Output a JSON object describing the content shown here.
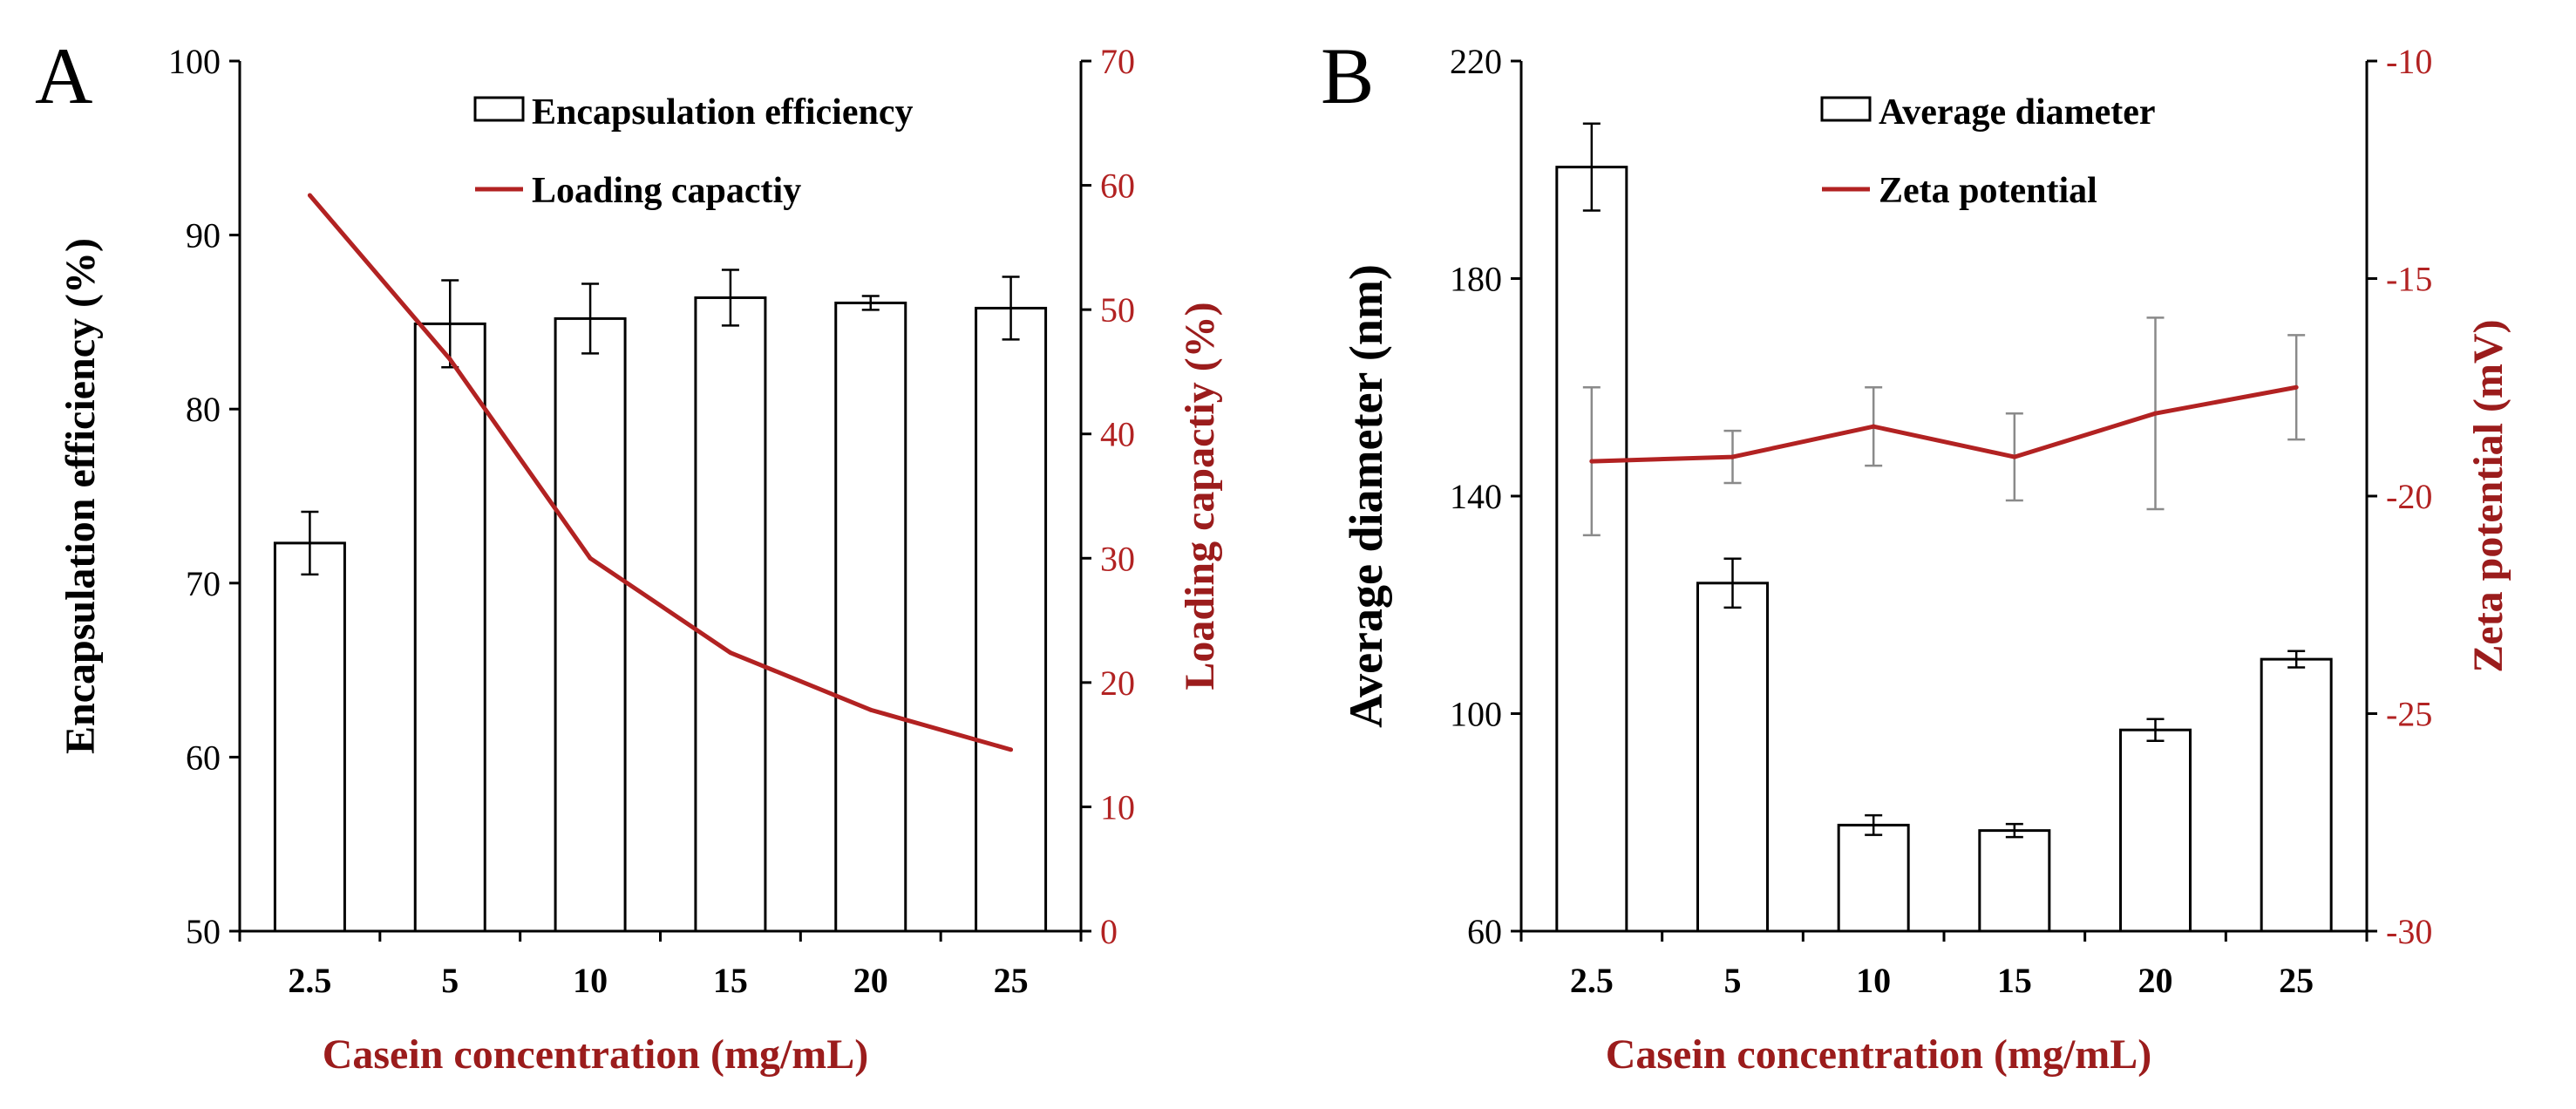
{
  "colors": {
    "accent_red": "#b22222",
    "axis_title_red": "#9b1c1c",
    "black": "#000000",
    "error_gray": "#8a8a8a"
  },
  "chart_data": [
    {
      "panel_label": "A",
      "type": "bar",
      "categories": [
        "2.5",
        "5",
        "10",
        "15",
        "20",
        "25"
      ],
      "series": [
        {
          "name": "Encapsulation efficiency",
          "kind": "bar",
          "axis": "left",
          "values": [
            72.3,
            84.9,
            85.2,
            86.4,
            86.1,
            85.8
          ],
          "errors": [
            1.8,
            2.5,
            2.0,
            1.6,
            0.4,
            1.8
          ]
        },
        {
          "name": "Loading capactiy",
          "kind": "line",
          "axis": "right",
          "values": [
            59.2,
            46.0,
            30.0,
            22.4,
            17.8,
            14.6
          ]
        }
      ],
      "xlabel": "Casein concentration (mg/mL)",
      "ylabel_left": "Encapsulation efficiency (%)",
      "ylabel_right": "Loading capactiy (%)",
      "ylim_left": [
        50,
        100
      ],
      "yticks_left": [
        "50",
        "60",
        "70",
        "80",
        "90",
        "100"
      ],
      "ylim_right": [
        0,
        70
      ],
      "yticks_right": [
        "0",
        "10",
        "20",
        "30",
        "40",
        "50",
        "60",
        "70"
      ],
      "legend_position": "top-right",
      "grid": false
    },
    {
      "panel_label": "B",
      "type": "bar",
      "categories": [
        "2.5",
        "5",
        "10",
        "15",
        "20",
        "25"
      ],
      "series": [
        {
          "name": "Average diameter",
          "kind": "bar",
          "axis": "left",
          "values": [
            200.5,
            124.0,
            79.5,
            78.5,
            97.0,
            110.0
          ],
          "errors": [
            8.0,
            4.5,
            1.8,
            1.2,
            2.0,
            1.5
          ]
        },
        {
          "name": "Zeta potential",
          "kind": "line",
          "axis": "right",
          "values": [
            -19.2,
            -19.1,
            -18.4,
            -19.1,
            -18.1,
            -17.5
          ],
          "errors": [
            1.7,
            0.6,
            0.9,
            1.0,
            2.2,
            1.2
          ]
        }
      ],
      "xlabel": "Casein concentration (mg/mL)",
      "ylabel_left": "Average diameter (nm)",
      "ylabel_right": "Zeta potential (mV)",
      "ylim_left": [
        60,
        220
      ],
      "yticks_left": [
        "60",
        "100",
        "140",
        "180",
        "220"
      ],
      "ylim_right": [
        -30,
        -10
      ],
      "yticks_right": [
        "-30",
        "-25",
        "-20",
        "-15",
        "-10"
      ],
      "legend_position": "top-right",
      "grid": false
    }
  ]
}
